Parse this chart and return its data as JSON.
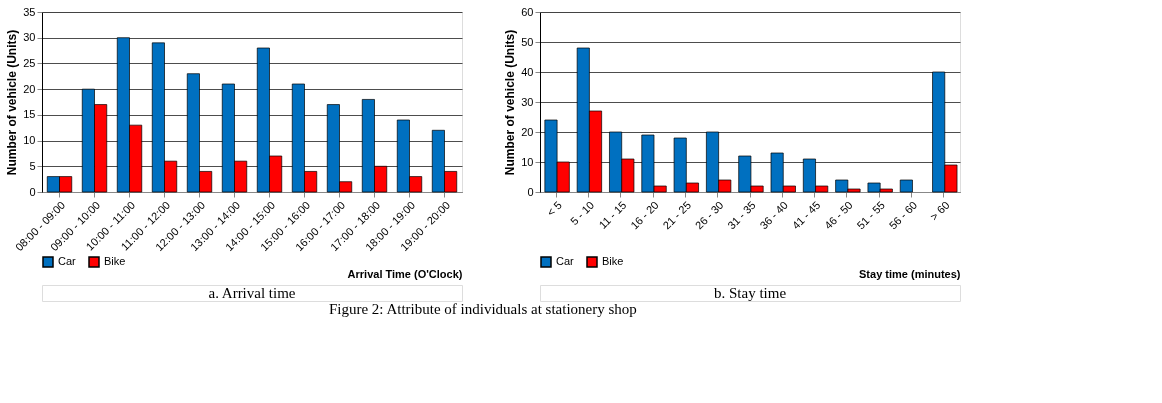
{
  "chart_data": [
    {
      "type": "bar",
      "xlabel": "Arrival Time (O'Clock)",
      "ylabel": "Number of vehicle (Units)",
      "categories": [
        "08:00 - 09:00",
        "09:00 - 10:00",
        "10:00 - 11:00",
        "11:00 - 12:00",
        "12:00 - 13:00",
        "13:00 - 14:00",
        "14:00 - 15:00",
        "15:00 - 16:00",
        "16:00 - 17:00",
        "17:00 - 18:00",
        "18:00 - 19:00",
        "19:00 - 20:00"
      ],
      "series": [
        {
          "name": "Car",
          "color": "#0070c0",
          "values": [
            3,
            20,
            30,
            29,
            23,
            21,
            28,
            21,
            17,
            18,
            14,
            12
          ]
        },
        {
          "name": "Bike",
          "color": "#ff0000",
          "values": [
            3,
            17,
            13,
            6,
            4,
            6,
            7,
            4,
            2,
            5,
            3,
            4
          ]
        }
      ],
      "ylim": [
        0,
        35
      ],
      "yticks": [
        0,
        5,
        10,
        15,
        20,
        25,
        30,
        35
      ],
      "grid": "y",
      "legend": "bottom left",
      "annotations": [
        "a. Arrival time",
        "Figure 2: Attribute of individuals at stationery shop"
      ]
    },
    {
      "type": "bar",
      "xlabel": "Stay time (minutes)",
      "ylabel": "Number of vehicle (Units)",
      "categories": [
        "< 5",
        "5 - 10",
        "11 - 15",
        "16 - 20",
        "21 - 25",
        "26 - 30",
        "31 - 35",
        "36 - 40",
        "41 - 45",
        "46 - 50",
        "51 - 55",
        "56 - 60",
        "> 60"
      ],
      "series": [
        {
          "name": "Car",
          "color": "#0070c0",
          "values": [
            24,
            48,
            20,
            19,
            18,
            20,
            12,
            13,
            11,
            4,
            3,
            4,
            40
          ]
        },
        {
          "name": "Bike",
          "color": "#ff0000",
          "values": [
            10,
            27,
            11,
            2,
            3,
            4,
            2,
            2,
            2,
            1,
            1,
            null,
            9
          ]
        }
      ],
      "ylim": [
        0,
        60
      ],
      "yticks": [
        0,
        10,
        20,
        30,
        40,
        50,
        60
      ],
      "grid": "y",
      "legend": "bottom left",
      "annotations": [
        "b. Stay time"
      ]
    }
  ]
}
